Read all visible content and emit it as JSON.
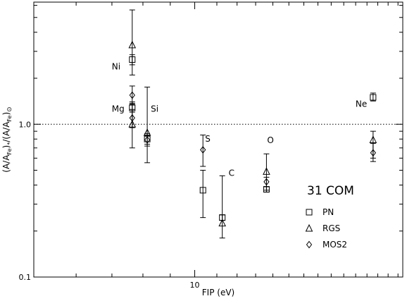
{
  "chart_data": {
    "type": "scatter",
    "xlabel": "FIP (eV)",
    "ylabel": "(A/A",
    "ylabel_sub1": "Fe",
    "ylabel_mid": ")",
    "ylabel_star": "*",
    "ylabel_div": "/(A/A",
    "ylabel_sub2": "Fe",
    "ylabel_end": ")",
    "ylabel_sun": "⊙",
    "x_scale": "log",
    "y_scale": "log",
    "xlim": [
      5.0,
      24.5
    ],
    "ylim": [
      0.1,
      6.3
    ],
    "x_ticks": [
      {
        "value": 10,
        "label": "10"
      }
    ],
    "y_ticks": [
      {
        "value": 0.1,
        "label": "0.1"
      },
      {
        "value": 1.0,
        "label": "1.0"
      }
    ],
    "reference_line": {
      "y": 1.0,
      "style": "dotted"
    },
    "legend_title": "31 COM",
    "legend_position": "bottom-right",
    "series": [
      {
        "name": "PN",
        "marker": "square",
        "points": [
          {
            "x": 7.64,
            "y": 2.65,
            "ylow": 2.45,
            "yhigh": 2.85
          },
          {
            "x": 7.64,
            "y": 1.28,
            "ylow": 1.2,
            "yhigh": 1.37
          },
          {
            "x": 8.15,
            "y": 0.8,
            "ylow": 0.74,
            "yhigh": 0.85
          },
          {
            "x": 10.36,
            "y": 0.37,
            "ylow": 0.245,
            "yhigh": 0.5
          },
          {
            "x": 11.26,
            "y": 0.245,
            "ylow": 0.235,
            "yhigh": 0.255
          },
          {
            "x": 13.62,
            "y": 0.375,
            "ylow": 0.36,
            "yhigh": 0.39
          },
          {
            "x": 21.56,
            "y": 1.5,
            "ylow": 1.42,
            "yhigh": 1.6
          }
        ]
      },
      {
        "name": "RGS",
        "marker": "triangle",
        "points": [
          {
            "x": 7.64,
            "y": 3.3,
            "ylow": 2.1,
            "yhigh": 5.6
          },
          {
            "x": 7.64,
            "y": 1.0,
            "ylow": 0.7,
            "yhigh": 1.4
          },
          {
            "x": 8.15,
            "y": 0.88,
            "ylow": 0.56,
            "yhigh": 1.75
          },
          {
            "x": 11.26,
            "y": 0.225,
            "ylow": 0.18,
            "yhigh": 0.46
          },
          {
            "x": 13.62,
            "y": 0.49,
            "ylow": 0.37,
            "yhigh": 0.64
          },
          {
            "x": 21.56,
            "y": 0.79,
            "ylow": 0.6,
            "yhigh": 0.9
          }
        ]
      },
      {
        "name": "MOS2",
        "marker": "diamond",
        "points": [
          {
            "x": 7.64,
            "y": 1.55,
            "ylow": 1.35,
            "yhigh": 1.78
          },
          {
            "x": 7.64,
            "y": 1.1,
            "ylow": 0.95,
            "yhigh": 1.25
          },
          {
            "x": 8.15,
            "y": 0.79,
            "ylow": 0.72,
            "yhigh": 0.87
          },
          {
            "x": 10.36,
            "y": 0.68,
            "ylow": 0.53,
            "yhigh": 0.85
          },
          {
            "x": 13.62,
            "y": 0.42,
            "ylow": 0.39,
            "yhigh": 0.45
          },
          {
            "x": 21.56,
            "y": 0.65,
            "ylow": 0.57,
            "yhigh": 0.75
          }
        ]
      }
    ],
    "annotations": [
      {
        "text": "Ni",
        "x": 7.64,
        "y": 2.65
      },
      {
        "text": "Mg",
        "x": 7.64,
        "y": 1.1
      },
      {
        "text": "Si",
        "x": 8.15,
        "y": 1.1
      },
      {
        "text": "S",
        "x": 10.36,
        "y": 0.82
      },
      {
        "text": "C",
        "x": 11.26,
        "y": 0.44
      },
      {
        "text": "O",
        "x": 13.62,
        "y": 0.82
      },
      {
        "text": "Ne",
        "x": 21.56,
        "y": 1.1
      }
    ]
  }
}
